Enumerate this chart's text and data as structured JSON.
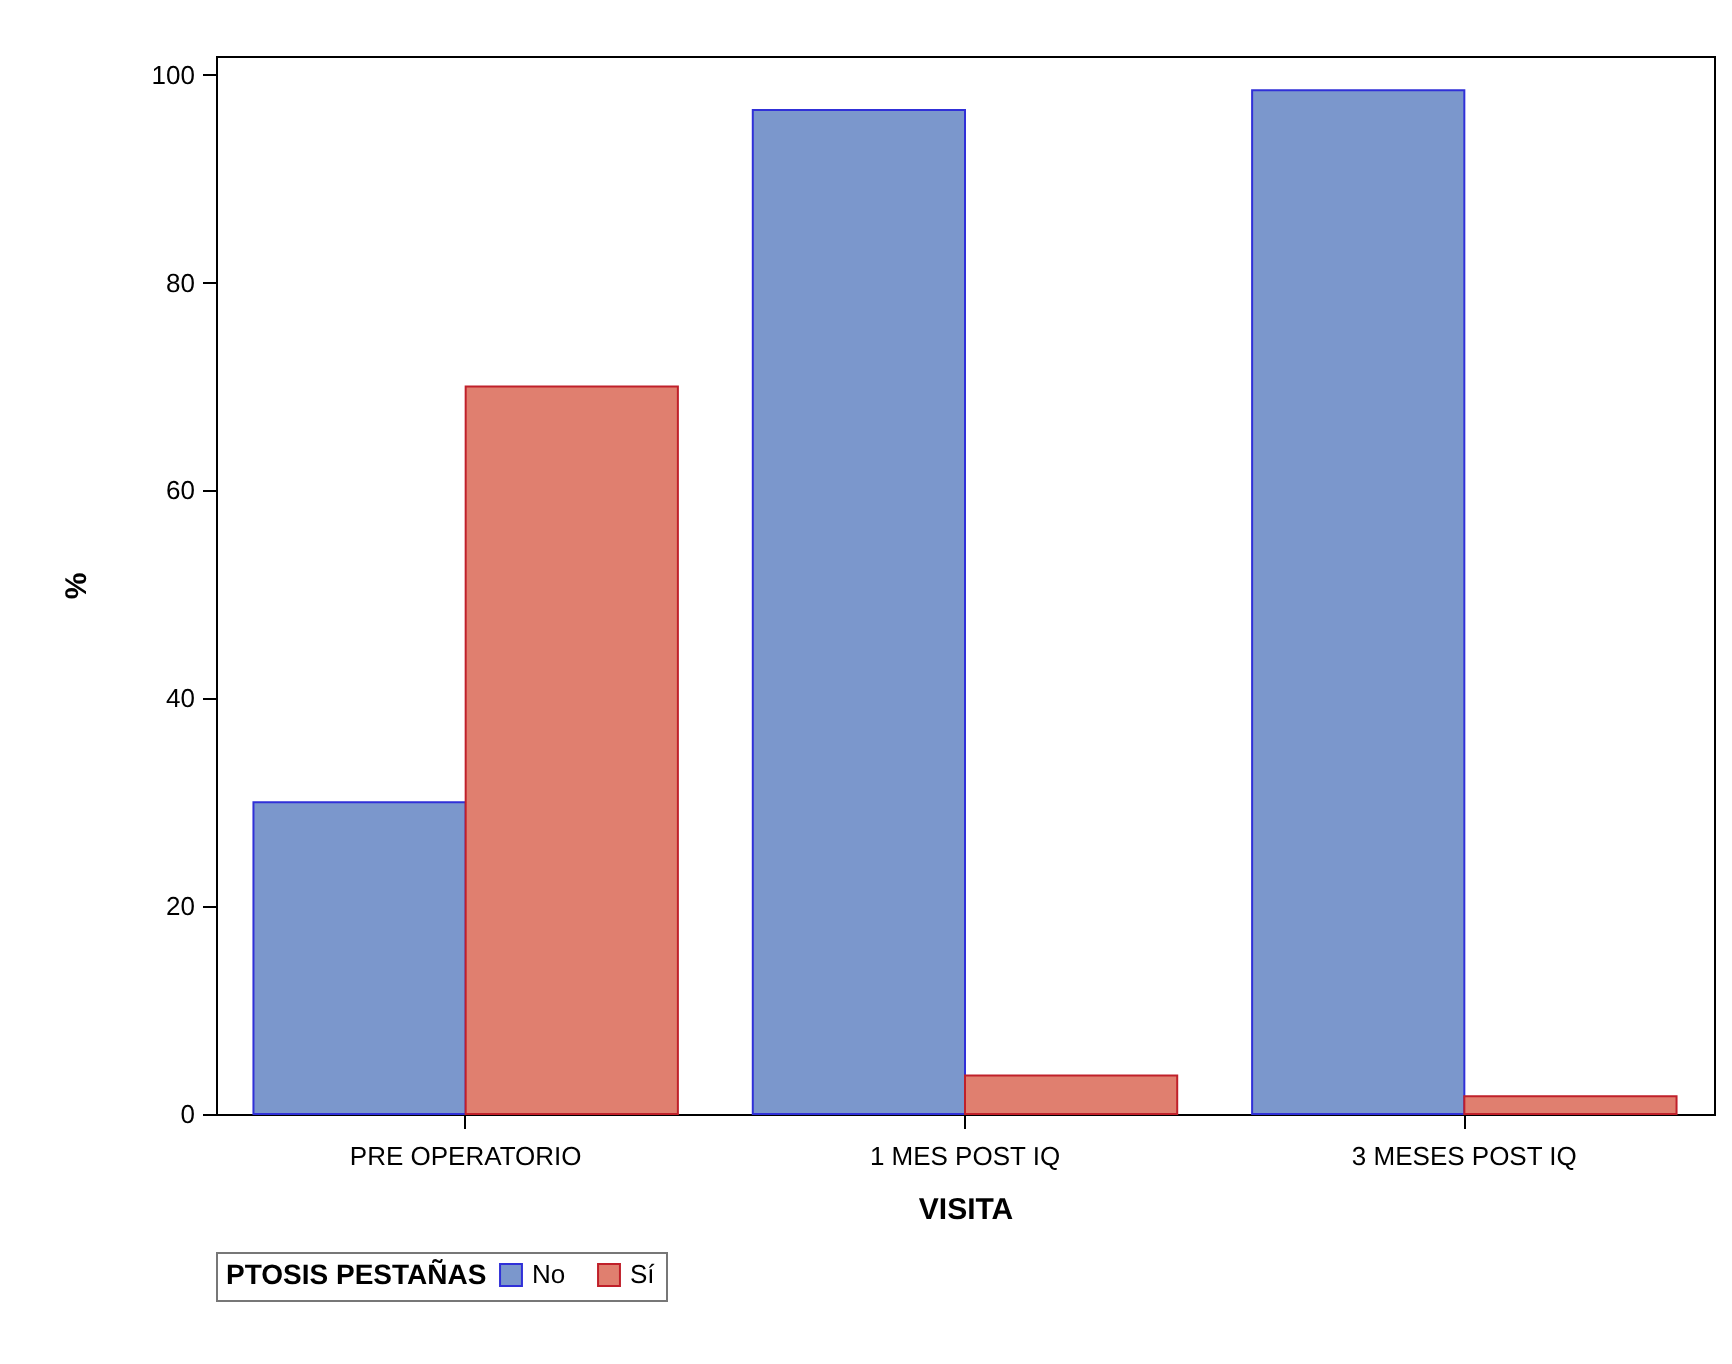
{
  "chart_data": {
    "type": "bar",
    "xlabel": "VISITA",
    "ylabel": "%",
    "legend_title": "PTOSIS PESTAÑAS",
    "categories": [
      "PRE OPERATORIO",
      "1 MES POST IQ",
      "3 MESES POST IQ"
    ],
    "series": [
      {
        "name": "No",
        "color": "#7b97cc",
        "values": [
          30,
          96.6,
          98.5
        ]
      },
      {
        "name": "Sí",
        "color": "#e07f6f",
        "values": [
          70,
          3.7,
          1.7
        ]
      }
    ],
    "ylim": [
      0,
      101.8
    ],
    "yticks": [
      0,
      20,
      40,
      60,
      80,
      100
    ],
    "grid": false,
    "legend": "bottom"
  }
}
